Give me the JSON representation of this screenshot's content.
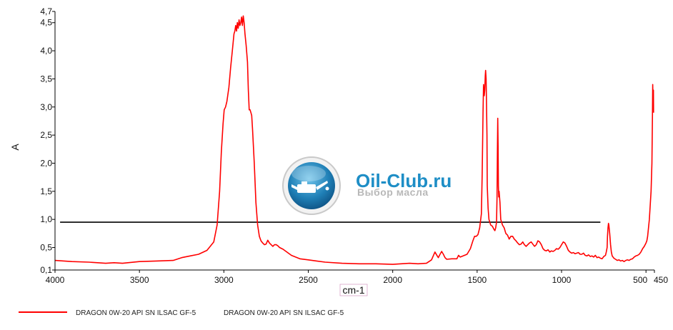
{
  "chart_data": {
    "type": "line",
    "title": "",
    "xlabel": "cm-1",
    "ylabel": "A",
    "xlim": [
      4000,
      450
    ],
    "ylim": [
      0.1,
      4.7
    ],
    "x_reversed": true,
    "grid": false,
    "x_ticks": [
      {
        "value": 4000,
        "label": "4000"
      },
      {
        "value": 3500,
        "label": "3500"
      },
      {
        "value": 3000,
        "label": "3000"
      },
      {
        "value": 2500,
        "label": "2500"
      },
      {
        "value": 2000,
        "label": "2000"
      },
      {
        "value": 1500,
        "label": "1500"
      },
      {
        "value": 1000,
        "label": "1000"
      },
      {
        "value": 500,
        "label": "500"
      },
      {
        "value": 450,
        "label": "450"
      }
    ],
    "y_ticks": [
      {
        "value": 0.1,
        "label": "0,1"
      },
      {
        "value": 0.5,
        "label": "0,5"
      },
      {
        "value": 1.0,
        "label": "1,0"
      },
      {
        "value": 1.5,
        "label": "1,5"
      },
      {
        "value": 2.0,
        "label": "2,0"
      },
      {
        "value": 2.5,
        "label": "2,5"
      },
      {
        "value": 3.0,
        "label": "3,0"
      },
      {
        "value": 3.5,
        "label": "3,5"
      },
      {
        "value": 4.0,
        "label": "4,0"
      },
      {
        "value": 4.5,
        "label": "4,5"
      },
      {
        "value": 4.7,
        "label": "4,7"
      }
    ],
    "reference_line": {
      "y": 0.95,
      "x_from": 3970,
      "x_to": 770,
      "color": "#000000"
    },
    "series": [
      {
        "name": "DRAGON 0W-20 API SN ILSAC GF-5",
        "label": "DRAGON 0W-20 API SN ILSAC GF-5",
        "color": "#ff0000",
        "x": [
          4000,
          3900,
          3800,
          3700,
          3650,
          3600,
          3500,
          3400,
          3300,
          3250,
          3200,
          3150,
          3100,
          3060,
          3040,
          3025,
          3015,
          3005,
          2998,
          2990,
          2982,
          2970,
          2960,
          2950,
          2940,
          2935,
          2930,
          2925,
          2920,
          2915,
          2910,
          2905,
          2900,
          2895,
          2890,
          2885,
          2880,
          2875,
          2868,
          2860,
          2855,
          2850,
          2845,
          2840,
          2835,
          2830,
          2820,
          2810,
          2800,
          2790,
          2780,
          2770,
          2760,
          2750,
          2740,
          2730,
          2720,
          2710,
          2700,
          2690,
          2680,
          2670,
          2650,
          2600,
          2550,
          2500,
          2450,
          2400,
          2300,
          2200,
          2100,
          2000,
          1900,
          1850,
          1800,
          1770,
          1750,
          1740,
          1730,
          1720,
          1710,
          1700,
          1690,
          1680,
          1650,
          1620,
          1610,
          1600,
          1560,
          1540,
          1525,
          1515,
          1505,
          1495,
          1485,
          1475,
          1470,
          1465,
          1462,
          1460,
          1458,
          1455,
          1452,
          1450,
          1447,
          1445,
          1442,
          1440,
          1435,
          1430,
          1420,
          1410,
          1400,
          1395,
          1390,
          1385,
          1382,
          1380,
          1378,
          1376,
          1374,
          1372,
          1370,
          1365,
          1360,
          1350,
          1340,
          1330,
          1320,
          1310,
          1300,
          1290,
          1280,
          1270,
          1260,
          1250,
          1240,
          1230,
          1220,
          1210,
          1200,
          1190,
          1180,
          1170,
          1160,
          1150,
          1140,
          1130,
          1120,
          1110,
          1100,
          1090,
          1080,
          1070,
          1060,
          1050,
          1040,
          1030,
          1020,
          1010,
          1000,
          990,
          980,
          970,
          960,
          950,
          940,
          930,
          920,
          910,
          900,
          890,
          880,
          870,
          860,
          850,
          840,
          830,
          820,
          810,
          800,
          790,
          780,
          770,
          760,
          750,
          740,
          735,
          730,
          728,
          725,
          722,
          720,
          715,
          710,
          705,
          700,
          690,
          680,
          670,
          660,
          650,
          640,
          630,
          620,
          610,
          600,
          590,
          580,
          570,
          560,
          550,
          540,
          530,
          520,
          510,
          500,
          495,
          490,
          485,
          480,
          475,
          470,
          465,
          462,
          460,
          458,
          456,
          455
        ],
        "y": [
          0.27,
          0.25,
          0.24,
          0.22,
          0.23,
          0.22,
          0.25,
          0.26,
          0.27,
          0.32,
          0.35,
          0.38,
          0.45,
          0.6,
          0.9,
          1.5,
          2.2,
          2.7,
          2.95,
          3.0,
          3.1,
          3.35,
          3.7,
          4.0,
          4.3,
          4.35,
          4.45,
          4.35,
          4.5,
          4.4,
          4.55,
          4.45,
          4.5,
          4.6,
          4.45,
          4.62,
          4.5,
          4.3,
          4.1,
          3.8,
          3.3,
          2.95,
          2.95,
          2.9,
          2.85,
          2.6,
          2.0,
          1.3,
          0.9,
          0.7,
          0.62,
          0.58,
          0.55,
          0.56,
          0.63,
          0.58,
          0.55,
          0.52,
          0.55,
          0.55,
          0.53,
          0.5,
          0.47,
          0.36,
          0.3,
          0.28,
          0.26,
          0.24,
          0.22,
          0.21,
          0.21,
          0.2,
          0.22,
          0.21,
          0.22,
          0.28,
          0.42,
          0.37,
          0.32,
          0.38,
          0.43,
          0.38,
          0.32,
          0.29,
          0.3,
          0.3,
          0.36,
          0.33,
          0.38,
          0.48,
          0.62,
          0.7,
          0.7,
          0.73,
          0.85,
          1.1,
          1.8,
          2.9,
          3.4,
          3.3,
          3.2,
          3.3,
          3.55,
          3.65,
          3.5,
          3.2,
          2.5,
          1.6,
          1.2,
          1.0,
          0.9,
          0.88,
          0.82,
          0.8,
          0.85,
          0.95,
          1.4,
          2.2,
          2.8,
          2.3,
          1.6,
          1.4,
          1.5,
          1.3,
          1.0,
          0.9,
          0.85,
          0.75,
          0.72,
          0.65,
          0.7,
          0.7,
          0.65,
          0.62,
          0.58,
          0.55,
          0.56,
          0.6,
          0.55,
          0.52,
          0.55,
          0.58,
          0.6,
          0.56,
          0.52,
          0.55,
          0.62,
          0.6,
          0.55,
          0.48,
          0.45,
          0.44,
          0.46,
          0.42,
          0.44,
          0.43,
          0.45,
          0.48,
          0.47,
          0.5,
          0.55,
          0.6,
          0.58,
          0.52,
          0.45,
          0.42,
          0.4,
          0.41,
          0.39,
          0.4,
          0.41,
          0.38,
          0.38,
          0.4,
          0.36,
          0.35,
          0.37,
          0.34,
          0.35,
          0.33,
          0.36,
          0.32,
          0.33,
          0.31,
          0.3,
          0.34,
          0.36,
          0.42,
          0.5,
          0.7,
          0.85,
          0.93,
          0.9,
          0.75,
          0.55,
          0.42,
          0.35,
          0.31,
          0.29,
          0.27,
          0.28,
          0.26,
          0.27,
          0.25,
          0.27,
          0.28,
          0.27,
          0.29,
          0.3,
          0.33,
          0.35,
          0.36,
          0.38,
          0.42,
          0.48,
          0.52,
          0.58,
          0.62,
          0.7,
          0.85,
          1.0,
          1.25,
          1.5,
          2.0,
          2.8,
          3.4,
          3.1,
          3.3,
          2.9
        ]
      }
    ]
  },
  "watermark": {
    "brand": "Oil-Club.ru",
    "tagline": "Выбор масла",
    "icon": "oil-can-icon",
    "brand_color": "#1e8ec6",
    "tagline_color": "#b8b8b8"
  }
}
